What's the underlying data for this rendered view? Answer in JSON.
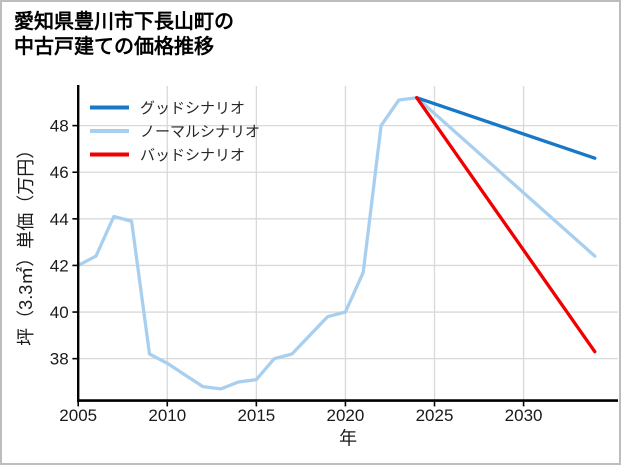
{
  "window": {
    "background": "#ffffff",
    "border_color": "#bdbdbd"
  },
  "header": {
    "title_line1": "愛知県豊川市下長山町の",
    "title_line2": "中古戸建ての価格推移"
  },
  "chart_data": {
    "type": "line",
    "title": "愛知県豊川市下長山町の中古戸建ての価格推移",
    "xlabel": "年",
    "ylabel": "坪（3.3㎡）単価（万円）",
    "xlim": [
      2005,
      2035.3
    ],
    "ylim": [
      36.2,
      49.7
    ],
    "xticks": [
      2005,
      2010,
      2015,
      2020,
      2025,
      2030
    ],
    "yticks": [
      38,
      40,
      42,
      44,
      46,
      48
    ],
    "grid": true,
    "legend_position": "upper-left",
    "legend_frame": false,
    "colors": {
      "grid": "#d9d9d9",
      "axis": "#000000",
      "tick_label": "#1a1a1a",
      "legend_text": "#262626"
    },
    "series": [
      {
        "name": "グッドシナリオ",
        "role": "good-scenario",
        "color": "#1878c8",
        "z": 2,
        "x": [
          2024,
          2034
        ],
        "values": [
          49.2,
          46.6
        ]
      },
      {
        "name": "ノーマルシナリオ",
        "role": "normal-scenario",
        "color": "#a9cfef",
        "z": 1,
        "x": [
          2005,
          2006,
          2007,
          2008,
          2009,
          2010,
          2011,
          2012,
          2013,
          2014,
          2015,
          2016,
          2017,
          2018,
          2019,
          2020,
          2021,
          2022,
          2023,
          2024,
          2034
        ],
        "values": [
          42.0,
          42.4,
          44.1,
          43.9,
          38.2,
          37.8,
          37.3,
          36.8,
          36.7,
          37.0,
          37.1,
          38.0,
          38.2,
          39.0,
          39.8,
          40.0,
          41.7,
          48.0,
          49.1,
          49.2,
          42.4
        ]
      },
      {
        "name": "バッドシナリオ",
        "role": "bad-scenario",
        "color": "#f20000",
        "z": 3,
        "x": [
          2024,
          2034
        ],
        "values": [
          49.2,
          38.3
        ]
      }
    ]
  }
}
